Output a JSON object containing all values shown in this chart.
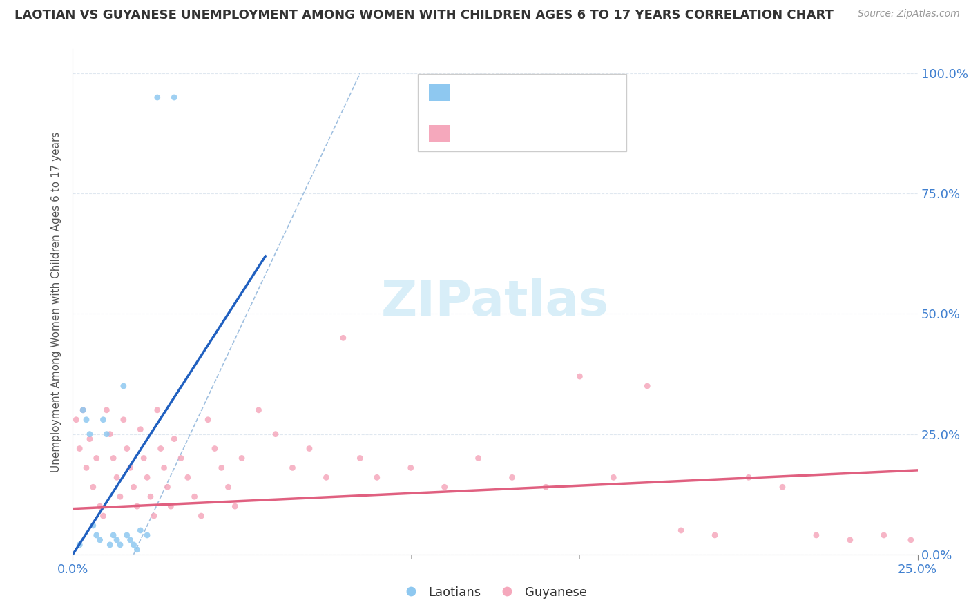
{
  "title": "LAOTIAN VS GUYANESE UNEMPLOYMENT AMONG WOMEN WITH CHILDREN AGES 6 TO 17 YEARS CORRELATION CHART",
  "source": "Source: ZipAtlas.com",
  "ylabel": "Unemployment Among Women with Children Ages 6 to 17 years",
  "xlim": [
    0,
    0.25
  ],
  "ylim": [
    0,
    1.05
  ],
  "xtick_vals": [
    0.0,
    0.25
  ],
  "xtick_labels": [
    "0.0%",
    "25.0%"
  ],
  "ytick_vals": [
    0.0,
    0.25,
    0.5,
    0.75,
    1.0
  ],
  "ytick_labels": [
    "0.0%",
    "25.0%",
    "50.0%",
    "75.0%",
    "100.0%"
  ],
  "laotian_color": "#8EC8F0",
  "guyanese_color": "#F5A8BC",
  "laotian_line_color": "#2060C0",
  "guyanese_line_color": "#E06080",
  "ref_line_color": "#A0C0E0",
  "watermark_color": "#D8EEF8",
  "laotian_points_x": [
    0.002,
    0.003,
    0.004,
    0.005,
    0.006,
    0.007,
    0.008,
    0.009,
    0.01,
    0.011,
    0.012,
    0.013,
    0.014,
    0.015,
    0.016,
    0.017,
    0.018,
    0.019,
    0.02,
    0.022,
    0.025,
    0.03
  ],
  "laotian_points_y": [
    0.02,
    0.3,
    0.28,
    0.25,
    0.06,
    0.04,
    0.03,
    0.28,
    0.25,
    0.02,
    0.04,
    0.03,
    0.02,
    0.35,
    0.04,
    0.03,
    0.02,
    0.01,
    0.05,
    0.04,
    0.95,
    0.95
  ],
  "guyanese_points_x": [
    0.001,
    0.002,
    0.003,
    0.004,
    0.005,
    0.006,
    0.007,
    0.008,
    0.009,
    0.01,
    0.011,
    0.012,
    0.013,
    0.014,
    0.015,
    0.016,
    0.017,
    0.018,
    0.019,
    0.02,
    0.021,
    0.022,
    0.023,
    0.024,
    0.025,
    0.026,
    0.027,
    0.028,
    0.029,
    0.03,
    0.032,
    0.034,
    0.036,
    0.038,
    0.04,
    0.042,
    0.044,
    0.046,
    0.048,
    0.05,
    0.055,
    0.06,
    0.065,
    0.07,
    0.075,
    0.08,
    0.085,
    0.09,
    0.1,
    0.11,
    0.12,
    0.13,
    0.14,
    0.15,
    0.16,
    0.17,
    0.18,
    0.19,
    0.2,
    0.21,
    0.22,
    0.23,
    0.24,
    0.248
  ],
  "guyanese_points_y": [
    0.28,
    0.22,
    0.3,
    0.18,
    0.24,
    0.14,
    0.2,
    0.1,
    0.08,
    0.3,
    0.25,
    0.2,
    0.16,
    0.12,
    0.28,
    0.22,
    0.18,
    0.14,
    0.1,
    0.26,
    0.2,
    0.16,
    0.12,
    0.08,
    0.3,
    0.22,
    0.18,
    0.14,
    0.1,
    0.24,
    0.2,
    0.16,
    0.12,
    0.08,
    0.28,
    0.22,
    0.18,
    0.14,
    0.1,
    0.2,
    0.3,
    0.25,
    0.18,
    0.22,
    0.16,
    0.45,
    0.2,
    0.16,
    0.18,
    0.14,
    0.2,
    0.16,
    0.14,
    0.37,
    0.16,
    0.35,
    0.05,
    0.04,
    0.16,
    0.14,
    0.04,
    0.03,
    0.04,
    0.03
  ],
  "laotian_line_x": [
    0.0,
    0.057
  ],
  "laotian_line_y": [
    0.0,
    0.62
  ],
  "guyanese_line_x": [
    0.0,
    0.25
  ],
  "guyanese_line_y": [
    0.095,
    0.175
  ],
  "ref_line_x": [
    0.018,
    0.085
  ],
  "ref_line_y": [
    0.0,
    1.0
  ],
  "background_color": "#FFFFFF",
  "grid_color": "#E0E8F0"
}
